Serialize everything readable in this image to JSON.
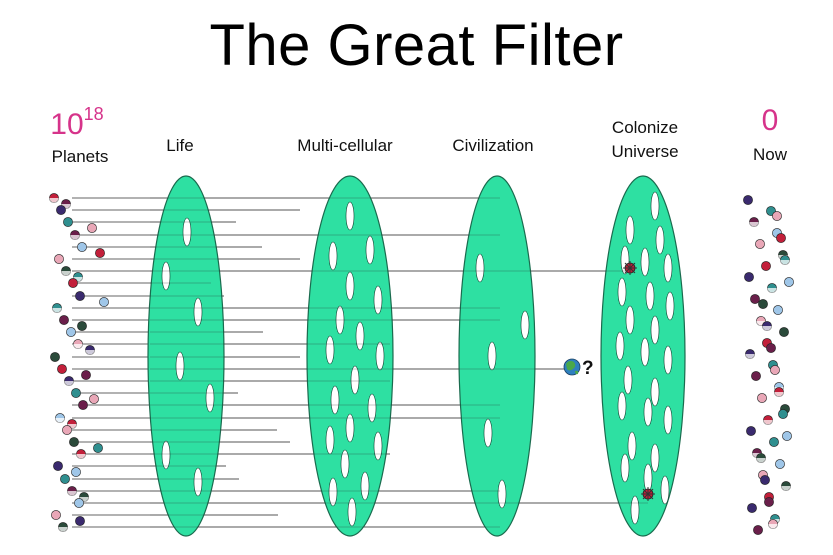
{
  "title": "The Great Filter",
  "left": {
    "count_base": "10",
    "count_exp": "18",
    "label": "Planets"
  },
  "right": {
    "count": "0",
    "label": "Now"
  },
  "filters": [
    {
      "name": "life",
      "label": "Life"
    },
    {
      "name": "multicellular",
      "label": "Multi-cellular"
    },
    {
      "name": "civilization",
      "label": "Civilization"
    },
    {
      "name": "colonize-universe",
      "label_line1": "Colonize",
      "label_line2": "Universe"
    }
  ],
  "earth_marker": "?",
  "colors": {
    "filter_fill": "#2ee0a2",
    "filter_stroke": "#1a6b4e",
    "accent": "#d6338a",
    "planet_palette": [
      "#c21f3a",
      "#3a2a6e",
      "#2f8f8f",
      "#6a1f4a",
      "#9fc6e8",
      "#e9a7b7",
      "#2a4a3a"
    ]
  }
}
